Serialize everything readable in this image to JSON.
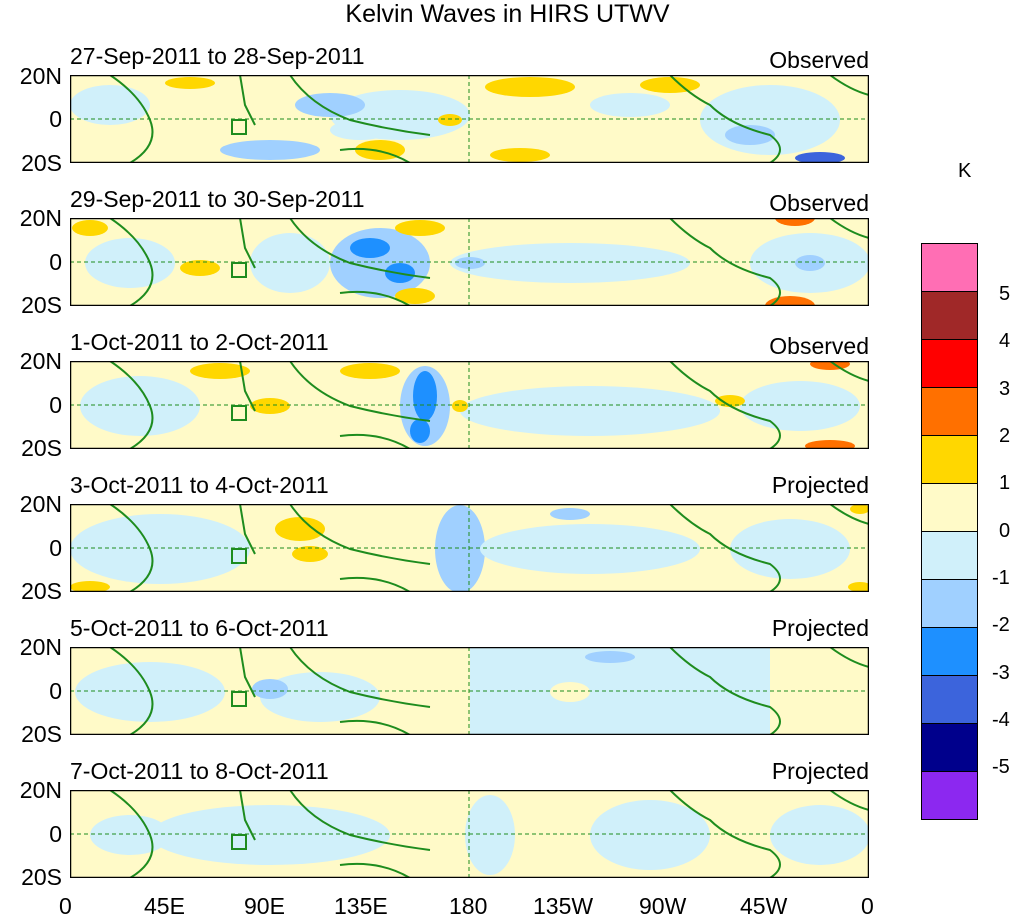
{
  "title": "Kelvin Waves in HIRS UTWV",
  "panels": [
    {
      "period": "27-Sep-2011 to 28-Sep-2011",
      "kind": "Observed"
    },
    {
      "period": "29-Sep-2011 to 30-Sep-2011",
      "kind": "Observed"
    },
    {
      "period": "1-Oct-2011 to 2-Oct-2011",
      "kind": "Observed"
    },
    {
      "period": "3-Oct-2011 to 4-Oct-2011",
      "kind": "Projected"
    },
    {
      "period": "5-Oct-2011 to 6-Oct-2011",
      "kind": "Projected"
    },
    {
      "period": "7-Oct-2011 to 8-Oct-2011",
      "kind": "Projected"
    }
  ],
  "lat_labels": [
    "20N",
    "0",
    "20S"
  ],
  "lon_labels": [
    "0",
    "45E",
    "90E",
    "135E",
    "180",
    "135W",
    "90W",
    "45W",
    "0"
  ],
  "colorbar": {
    "unit": "K",
    "labels": [
      "5",
      "4",
      "3",
      "2",
      "1",
      "0",
      "-1",
      "-2",
      "-3",
      "-4",
      "-5"
    ],
    "colors": [
      "#ff6eb4",
      "#a02828",
      "#ff0000",
      "#ff7000",
      "#ffd700",
      "#fffac8",
      "#d0f0fa",
      "#a0d0ff",
      "#1e90ff",
      "#3c64dc",
      "#00008c",
      "#8c28f0"
    ]
  },
  "colors": {
    "coast": "#1e8c1e",
    "neutral_pos": "#fffac8",
    "neutral_neg": "#d0f0fa"
  }
}
